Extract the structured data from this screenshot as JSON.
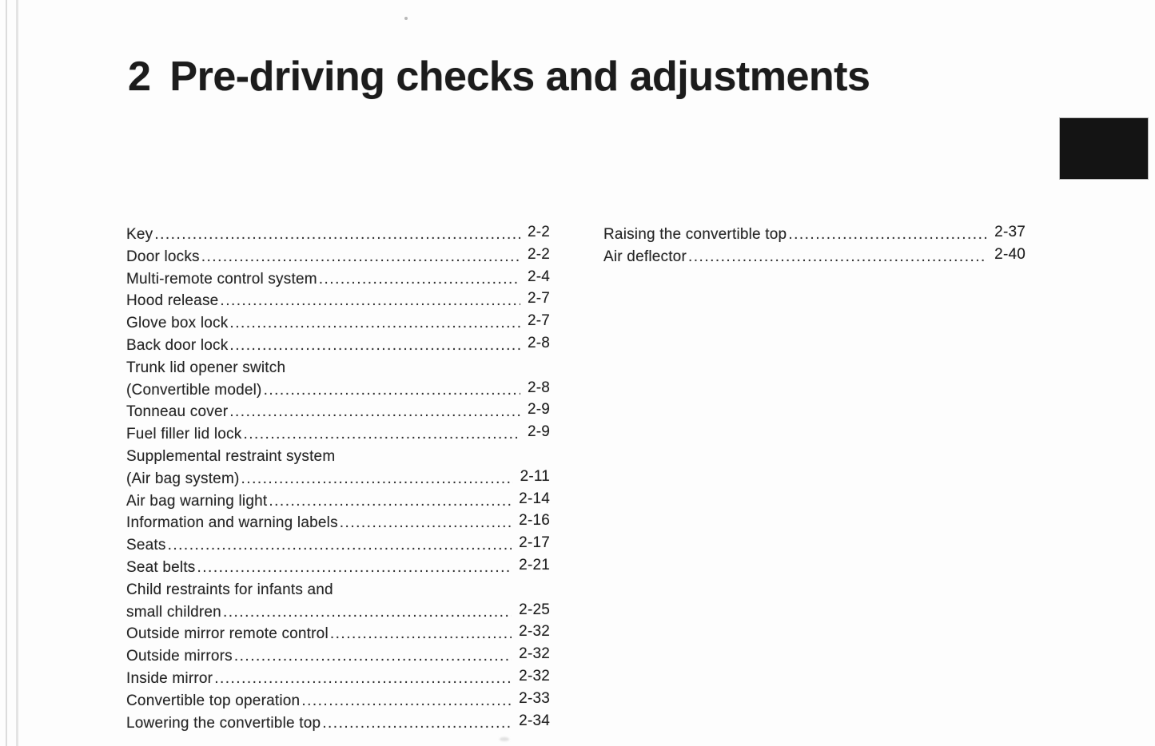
{
  "title": {
    "number": "2",
    "text": "Pre-driving checks and adjustments"
  },
  "toc": {
    "left": [
      {
        "label": "Key",
        "page": "2-2"
      },
      {
        "label": "Door locks",
        "page": "2-2"
      },
      {
        "label": "Multi-remote control system",
        "page": "2-4"
      },
      {
        "label": "Hood release",
        "page": "2-7"
      },
      {
        "label": "Glove box lock",
        "page": "2-7"
      },
      {
        "label": "Back door lock",
        "page": "2-8"
      },
      {
        "label": "Trunk lid opener switch",
        "label2": "(Convertible model)",
        "page": "2-8"
      },
      {
        "label": "Tonneau cover",
        "page": "2-9"
      },
      {
        "label": "Fuel filler lid lock",
        "page": "2-9"
      },
      {
        "label": "Supplemental restraint system",
        "label2": "(Air bag system)",
        "page": "2-11"
      },
      {
        "label": "Air bag warning light",
        "page": "2-14"
      },
      {
        "label": "Information and warning labels",
        "page": "2-16"
      },
      {
        "label": "Seats",
        "page": "2-17"
      },
      {
        "label": "Seat belts",
        "page": "2-21"
      },
      {
        "label": "Child restraints for infants and",
        "label2": "small children",
        "page": "2-25"
      },
      {
        "label": "Outside mirror remote control",
        "page": "2-32"
      },
      {
        "label": "Outside mirrors",
        "page": "2-32"
      },
      {
        "label": "Inside mirror",
        "page": "2-32"
      },
      {
        "label": "Convertible top operation",
        "page": "2-33"
      },
      {
        "label": "Lowering the convertible top",
        "page": "2-34"
      }
    ],
    "right": [
      {
        "label": "Raising the convertible top",
        "page": "2-37"
      },
      {
        "label": "Air deflector",
        "page": "2-40"
      }
    ]
  },
  "colors": {
    "background": "#fdfdfd",
    "text": "#242424",
    "chapter_tab": "#141414"
  }
}
